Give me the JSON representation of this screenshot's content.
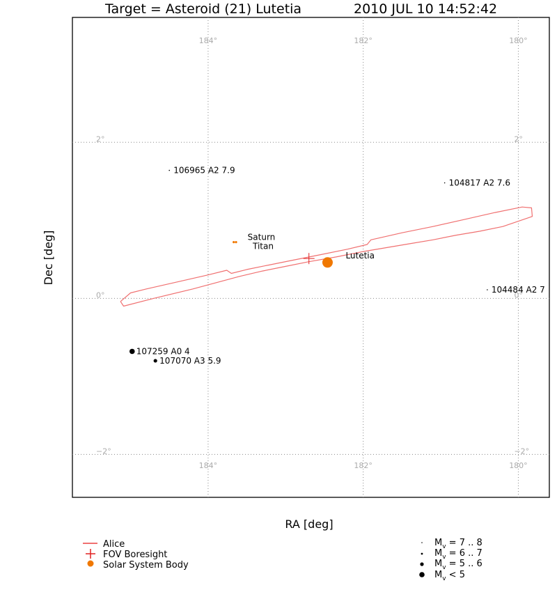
{
  "title_target": "Target = Asteroid (21) Lutetia",
  "title_time": "2010 JUL 10 14:52:42",
  "colors": {
    "alice": "#f07070",
    "boresight": "#e02020",
    "body": "#f07800",
    "grid": "#888888",
    "tick_text": "#aaaaaa",
    "star": "#000000"
  },
  "chart_data": {
    "type": "scatter",
    "xlabel": "RA [deg]",
    "ylabel": "Dec [deg]",
    "xlim": [
      185.75,
      179.6
    ],
    "ylim": [
      -2.55,
      3.6
    ],
    "x_axis_reversed": true,
    "grid": true,
    "x_ticks": [
      184,
      182,
      180
    ],
    "x_tick_labels": [
      "184°",
      "182°",
      "180°"
    ],
    "y_ticks": [
      2,
      0,
      -2
    ],
    "y_tick_labels": [
      "2°",
      "0°",
      "−2°"
    ],
    "alice_slit_outline": [
      [
        185.13,
        -0.04
      ],
      [
        185.09,
        -0.1
      ],
      [
        184.7,
        0.0
      ],
      [
        184.2,
        0.12
      ],
      [
        183.9,
        0.2
      ],
      [
        183.6,
        0.28
      ],
      [
        183.3,
        0.35
      ],
      [
        183.0,
        0.41
      ],
      [
        182.7,
        0.47
      ],
      [
        182.35,
        0.53
      ],
      [
        182.0,
        0.6
      ],
      [
        181.7,
        0.65
      ],
      [
        181.4,
        0.7
      ],
      [
        181.1,
        0.75
      ],
      [
        180.8,
        0.81
      ],
      [
        180.5,
        0.86
      ],
      [
        180.2,
        0.92
      ],
      [
        179.82,
        1.05
      ],
      [
        179.83,
        1.16
      ],
      [
        179.95,
        1.17
      ],
      [
        180.3,
        1.1
      ],
      [
        180.7,
        1.01
      ],
      [
        181.1,
        0.92
      ],
      [
        181.5,
        0.84
      ],
      [
        181.9,
        0.75
      ],
      [
        181.95,
        0.69
      ],
      [
        182.2,
        0.63
      ],
      [
        182.55,
        0.56
      ],
      [
        182.9,
        0.49
      ],
      [
        183.2,
        0.43
      ],
      [
        183.5,
        0.37
      ],
      [
        183.7,
        0.32
      ],
      [
        183.76,
        0.36
      ],
      [
        184.0,
        0.3
      ],
      [
        184.4,
        0.21
      ],
      [
        184.8,
        0.12
      ],
      [
        185.0,
        0.07
      ],
      [
        185.13,
        -0.04
      ]
    ],
    "fov_boresight": {
      "ra": 182.7,
      "dec": 0.51
    },
    "solar_system_bodies": [
      {
        "name": "Lutetia",
        "ra": 182.46,
        "dec": 0.46
      },
      {
        "name": "Saturn",
        "ra": 183.67,
        "dec": 0.72
      },
      {
        "name": "Titan",
        "ra": 183.64,
        "dec": 0.72
      }
    ],
    "stars": [
      {
        "id": "106965",
        "sptype": "A2",
        "mag": "7.9",
        "ra": 184.5,
        "dec": 1.64
      },
      {
        "id": "104817",
        "sptype": "A2",
        "mag": "7.6",
        "ra": 180.95,
        "dec": 1.48
      },
      {
        "id": "104484",
        "sptype": "A2",
        "mag": "7",
        "ra": 180.4,
        "dec": 0.11
      },
      {
        "id": "107259",
        "sptype": "A0",
        "mag": "4",
        "ra": 184.98,
        "dec": -0.68
      },
      {
        "id": "107070",
        "sptype": "A3",
        "mag": "5.9",
        "ra": 184.68,
        "dec": -0.8
      }
    ]
  },
  "legend_left": {
    "alice": "Alice",
    "boresight": "FOV Boresight",
    "body": "Solar System Body"
  },
  "legend_right": [
    {
      "range": " = 7 .. 8"
    },
    {
      "range": " = 6 .. 7"
    },
    {
      "range": " = 5 .. 6"
    },
    {
      "range": " < 5"
    }
  ]
}
